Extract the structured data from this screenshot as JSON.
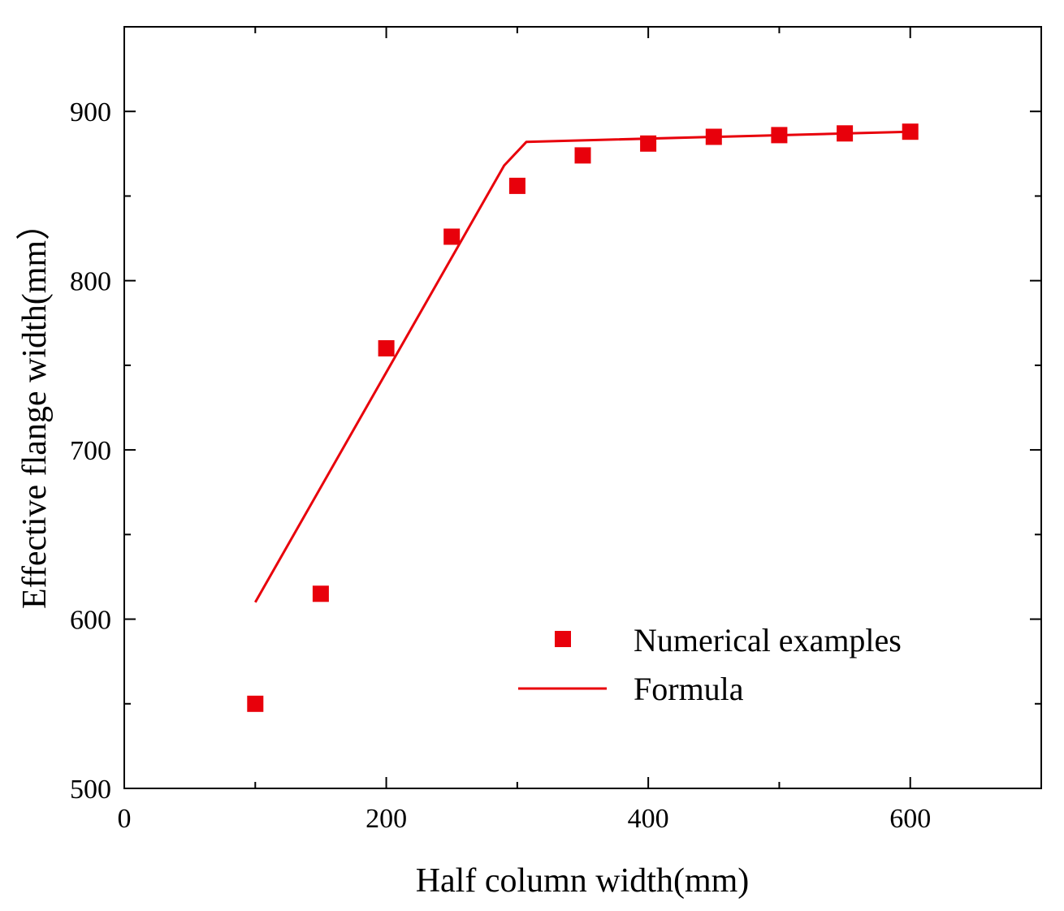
{
  "chart_data": {
    "type": "scatter",
    "title": "",
    "xlabel": "Half column width(mm)",
    "ylabel": "Effective flange width(mm）",
    "xlim": [
      0,
      700
    ],
    "ylim": [
      500,
      950
    ],
    "x_ticks": [
      0,
      200,
      400,
      600
    ],
    "x_tick_labels": [
      "0",
      "200",
      "400",
      "600"
    ],
    "y_ticks": [
      500,
      600,
      700,
      800,
      900
    ],
    "y_tick_labels": [
      "500",
      "600",
      "700",
      "800",
      "900"
    ],
    "grid": false,
    "legend_position": "bottom-right",
    "series": [
      {
        "name": "Numerical examples",
        "type": "scatter",
        "marker": "square",
        "color": "#e8000b",
        "x": [
          100,
          150,
          200,
          250,
          300,
          350,
          400,
          450,
          500,
          550,
          600
        ],
        "y": [
          550,
          615,
          760,
          826,
          856,
          874,
          881,
          885,
          886,
          887,
          888
        ]
      },
      {
        "name": "Formula",
        "type": "line",
        "color": "#e8000b",
        "x": [
          100,
          290,
          307,
          600
        ],
        "y": [
          610,
          868,
          882,
          888
        ]
      }
    ]
  }
}
